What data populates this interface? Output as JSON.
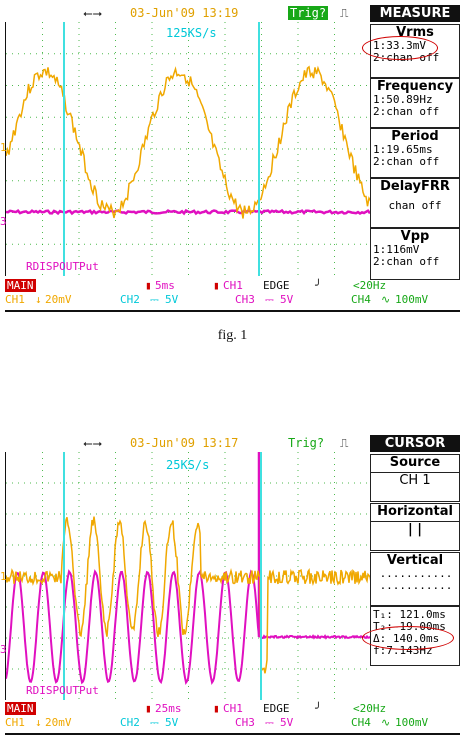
{
  "figures": [
    {
      "caption": "fig. 1",
      "topbar": {
        "usb_icon": "usb-icon",
        "datetime": "03-Jun'09 13:19",
        "trig": "Trig?",
        "pulse_icon": "pulse-icon"
      },
      "sample_rate": "125KS/s",
      "ch1_marker": "1",
      "ch3_marker": "3",
      "channel_label": "RDISPOUTPut",
      "menu": {
        "title": "MEASURE",
        "items": [
          {
            "title": "Vrms",
            "lines": [
              "1:33.3mV",
              "2:chan off"
            ]
          },
          {
            "title": "Frequency",
            "lines": [
              "1:50.89Hz",
              "2:chan off"
            ]
          },
          {
            "title": "Period",
            "lines": [
              "1:19.65ms",
              "2:chan off"
            ]
          },
          {
            "title": "DelayFRR",
            "lines": [
              "chan off"
            ]
          },
          {
            "title": "Vpp",
            "lines": [
              "1:116mV",
              "2:chan off"
            ]
          }
        ]
      },
      "status": {
        "row1": {
          "main": "MAIN",
          "timebase": "5ms",
          "trig_src": "CH1",
          "edge": "EDGE",
          "slope": "╯",
          "filter": "<20Hz"
        },
        "row2": {
          "ch1": "CH1",
          "ch1_scale": "20mV",
          "ch2": "CH2",
          "ch2_scale": "5V",
          "ch3": "CH3",
          "ch3_scale": "5V",
          "ch4": "CH4",
          "ch4_scale": "100mV"
        }
      },
      "colors": {
        "ch1": "#f0a800",
        "ch2": "#00c8d8",
        "ch3": "#e010c0",
        "ch4": "#18a818",
        "cursor": "#40e0e0",
        "main": "#d00000"
      }
    },
    {
      "topbar": {
        "usb_icon": "usb-icon",
        "datetime": "03-Jun'09 13:17",
        "trig": "Trig?",
        "pulse_icon": "pulse-icon"
      },
      "sample_rate": "25KS/s",
      "ch1_marker": "1",
      "ch3_marker": "3",
      "channel_label": "RDISPOUTPut",
      "menu": {
        "title": "CURSOR",
        "source_title": "Source",
        "source_value": "CH 1",
        "horizontal_title": "Horizontal",
        "horizontal_value": "| |",
        "vertical_title": "Vertical",
        "vertical_dots": "...........",
        "t1": "T₁:  121.0ms",
        "t2": "T₂:-19.00ms",
        "delta": "Δ:  140.0ms",
        "freq": "f:7.143Hz"
      },
      "status": {
        "row1": {
          "main": "MAIN",
          "timebase": "25ms",
          "trig_src": "CH1",
          "edge": "EDGE",
          "slope": "╯",
          "filter": "<20Hz"
        },
        "row2": {
          "ch1": "CH1",
          "ch1_scale": "20mV",
          "ch2": "CH2",
          "ch2_scale": "5V",
          "ch3": "CH3",
          "ch3_scale": "5V",
          "ch4": "CH4",
          "ch4_scale": "100mV"
        }
      }
    }
  ]
}
